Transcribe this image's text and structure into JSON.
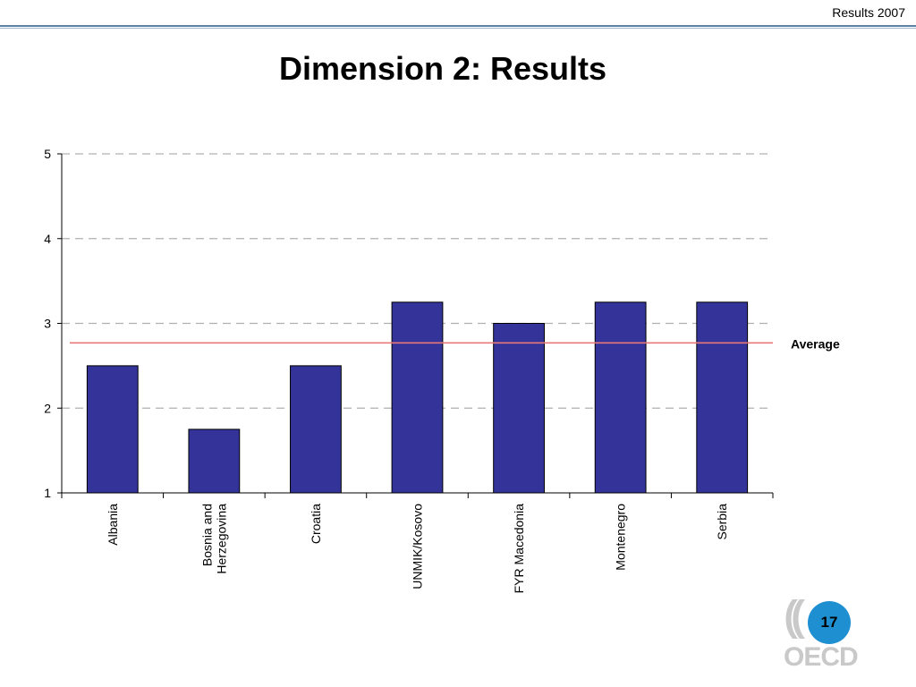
{
  "header": {
    "label": "Results 2007"
  },
  "slide": {
    "title": "Dimension 2: Results",
    "page_number": "17"
  },
  "logo": {
    "text": "OECD"
  },
  "colors": {
    "bar": "#333399",
    "average_line": "#e87878",
    "grid": "#b0b0b0",
    "accent": "#1e8fd0"
  },
  "chart_data": {
    "type": "bar",
    "categories": [
      "Albania",
      "Bosnia and Herzegovina",
      "Croatia",
      "UNMIK/Kosovo",
      "FYR Macedonia",
      "Montenegro",
      "Serbia"
    ],
    "category_lines": [
      [
        "Albania"
      ],
      [
        "Bosnia and",
        "Herzegovina"
      ],
      [
        "Croatia"
      ],
      [
        "UNMIK/Kosovo"
      ],
      [
        "FYR Macedonia"
      ],
      [
        "Montenegro"
      ],
      [
        "Serbia"
      ]
    ],
    "values": [
      2.5,
      1.75,
      2.5,
      3.25,
      3.0,
      3.25,
      3.25
    ],
    "ylim": [
      1,
      5
    ],
    "yticks": [
      1,
      2,
      3,
      4,
      5
    ],
    "grid": true,
    "reference_line": {
      "label": "Average",
      "value": 2.77
    },
    "title": "",
    "xlabel": "",
    "ylabel": ""
  }
}
